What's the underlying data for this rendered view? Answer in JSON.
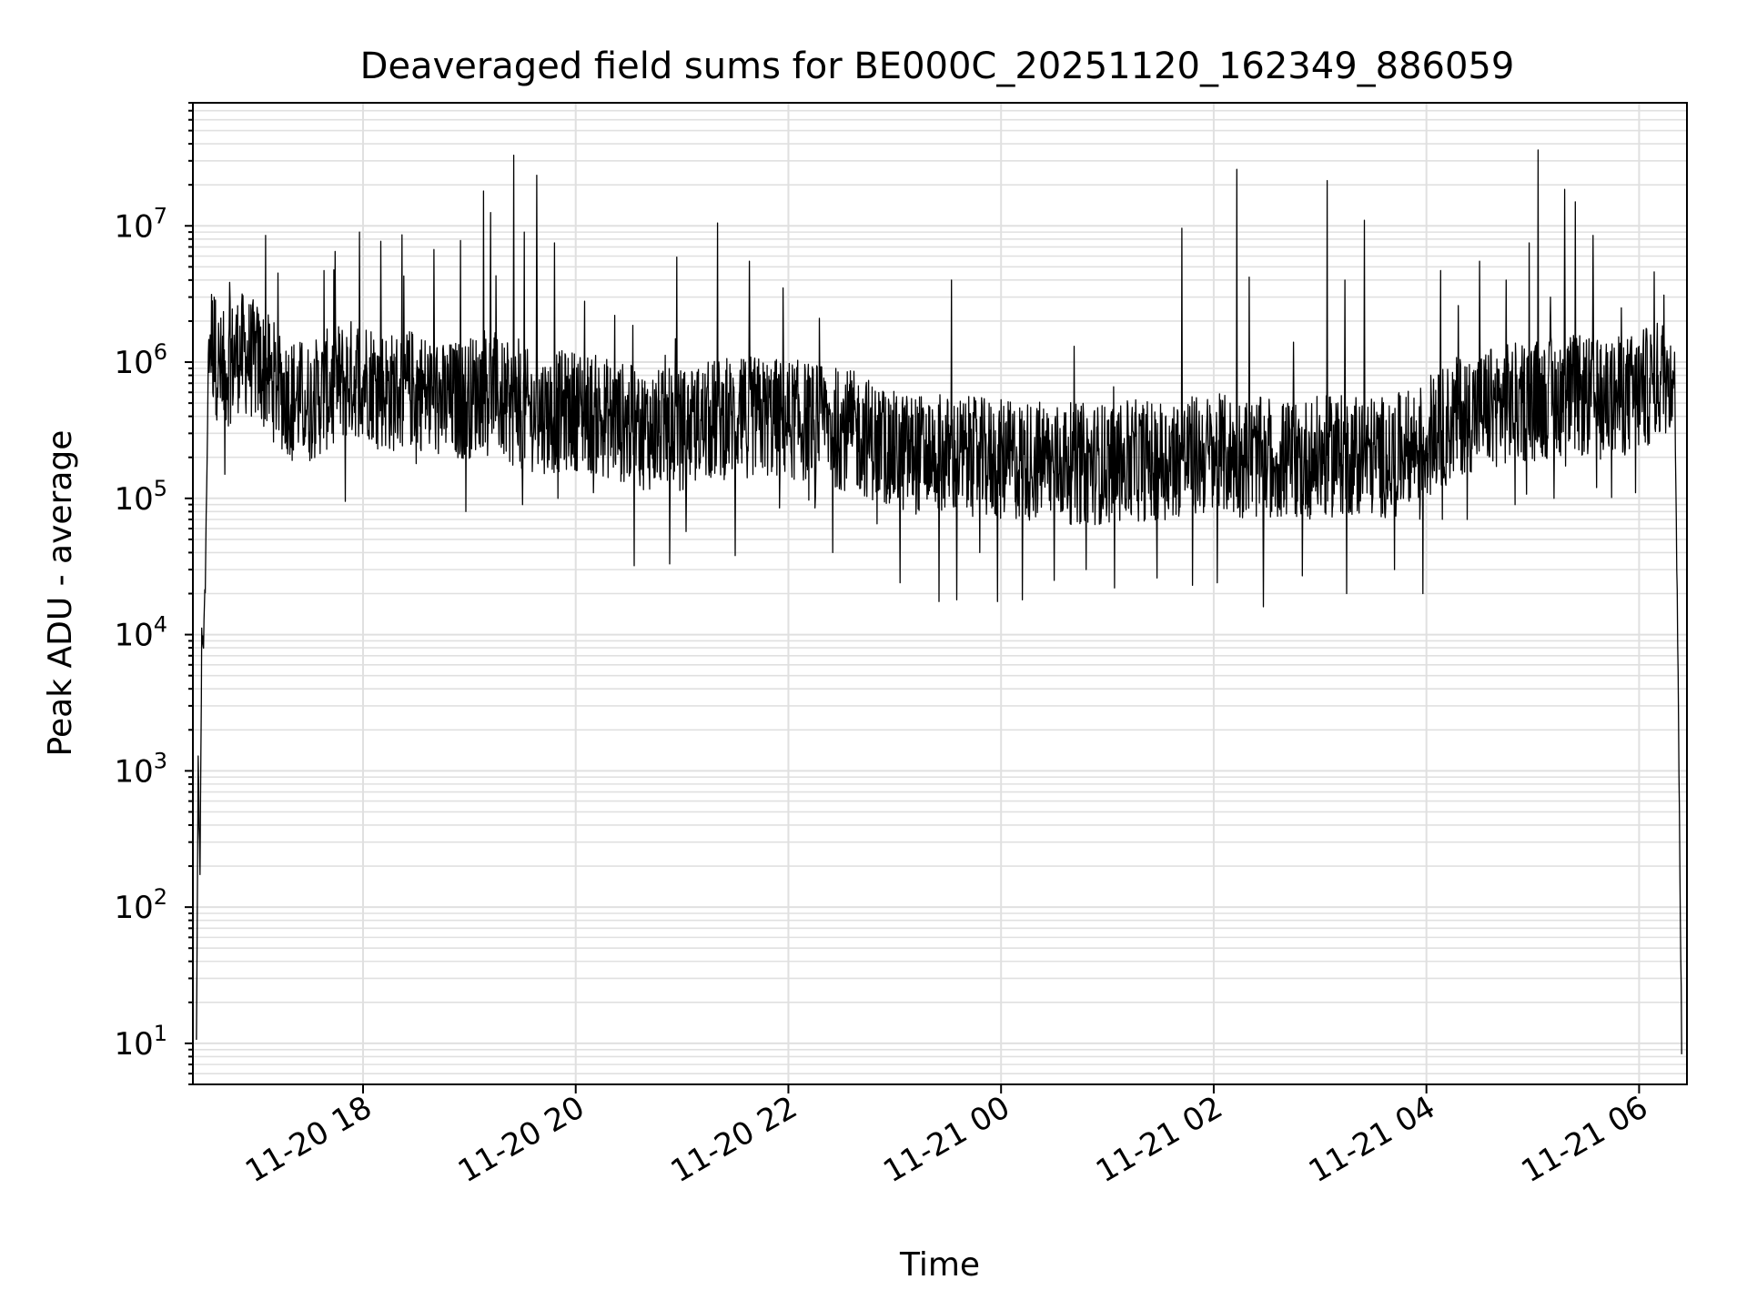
{
  "chart_data": {
    "type": "line",
    "title": "Deaveraged field sums for BE000C_20251120_162349_886059",
    "xlabel": "Time",
    "ylabel": "Peak ADU - average",
    "yscale": "log",
    "ylim": [
      5,
      80000000
    ],
    "xlim": [
      "11-20 16:24",
      "11-21 06:27"
    ],
    "grid": true,
    "line_color": "#000000",
    "grid_color": "#e0e0e0",
    "x_ticks": [
      {
        "label": "11-20 18",
        "time": "11-20 18:00"
      },
      {
        "label": "11-20 20",
        "time": "11-20 20:00"
      },
      {
        "label": "11-20 22",
        "time": "11-20 22:00"
      },
      {
        "label": "11-21 00",
        "time": "11-21 00:00"
      },
      {
        "label": "11-21 02",
        "time": "11-21 02:00"
      },
      {
        "label": "11-21 04",
        "time": "11-21 04:00"
      },
      {
        "label": "11-21 06",
        "time": "11-21 06:00"
      }
    ],
    "y_ticks": [
      {
        "base": "10",
        "exp": "1",
        "value": 10
      },
      {
        "base": "10",
        "exp": "2",
        "value": 100
      },
      {
        "base": "10",
        "exp": "3",
        "value": 1000
      },
      {
        "base": "10",
        "exp": "4",
        "value": 10000
      },
      {
        "base": "10",
        "exp": "5",
        "value": 100000
      },
      {
        "base": "10",
        "exp": "6",
        "value": 1000000
      },
      {
        "base": "10",
        "exp": "7",
        "value": 10000000
      }
    ],
    "series": [
      {
        "points": [
          [
            "11-20 16:26",
            10
          ],
          [
            "11-20 16:27",
            1200
          ],
          [
            "11-20 16:28",
            160
          ],
          [
            "11-20 16:29",
            10000
          ],
          [
            "11-20 16:30",
            9000
          ],
          [
            "11-20 16:31",
            24000
          ],
          [
            "11-20 16:33",
            1700000
          ],
          [
            "11-20 16:40",
            800000
          ],
          [
            "11-20 16:50",
            1200000
          ],
          [
            "11-20 17:00",
            1000000
          ],
          [
            "11-20 17:15",
            600000
          ],
          [
            "11-20 17:30",
            500000
          ],
          [
            "11-20 17:45",
            700000
          ],
          [
            "11-20 18:00",
            800000
          ],
          [
            "11-20 18:15",
            600000
          ],
          [
            "11-20 18:30",
            650000
          ],
          [
            "11-20 18:45",
            500000
          ],
          [
            "11-20 19:00",
            550000
          ],
          [
            "11-20 19:10",
            700000
          ],
          [
            "11-20 19:20",
            500000
          ],
          [
            "11-20 19:30",
            450000
          ],
          [
            "11-20 19:45",
            420000
          ],
          [
            "11-20 20:00",
            450000
          ],
          [
            "11-20 20:20",
            380000
          ],
          [
            "11-20 20:40",
            320000
          ],
          [
            "11-20 21:00",
            320000
          ],
          [
            "11-20 21:20",
            380000
          ],
          [
            "11-20 21:40",
            400000
          ],
          [
            "11-20 22:00",
            380000
          ],
          [
            "11-20 22:20",
            350000
          ],
          [
            "11-20 22:40",
            300000
          ],
          [
            "11-20 23:00",
            220000
          ],
          [
            "11-20 23:20",
            210000
          ],
          [
            "11-20 23:40",
            200000
          ],
          [
            "11-21 00:00",
            190000
          ],
          [
            "11-21 00:20",
            190000
          ],
          [
            "11-21 00:40",
            180000
          ],
          [
            "11-21 01:00",
            180000
          ],
          [
            "11-21 01:20",
            190000
          ],
          [
            "11-21 01:40",
            200000
          ],
          [
            "11-21 02:00",
            210000
          ],
          [
            "11-21 02:20",
            200000
          ],
          [
            "11-21 02:40",
            190000
          ],
          [
            "11-21 03:00",
            200000
          ],
          [
            "11-21 03:20",
            210000
          ],
          [
            "11-21 03:40",
            200000
          ],
          [
            "11-21 04:00",
            260000
          ],
          [
            "11-21 04:20",
            420000
          ],
          [
            "11-21 04:40",
            480000
          ],
          [
            "11-21 05:00",
            520000
          ],
          [
            "11-21 05:20",
            580000
          ],
          [
            "11-21 05:40",
            520000
          ],
          [
            "11-21 06:00",
            600000
          ],
          [
            "11-21 06:15",
            800000
          ],
          [
            "11-21 06:20",
            900000
          ],
          [
            "11-21 06:22",
            5000
          ],
          [
            "11-21 06:24",
            10
          ]
        ],
        "spikes": [
          [
            "11-20 16:36",
            3000000
          ],
          [
            "11-20 16:45",
            2800000
          ],
          [
            "11-20 17:05",
            8500000
          ],
          [
            "11-20 17:12",
            4500000
          ],
          [
            "11-20 17:20",
            8000000
          ],
          [
            "11-20 17:38",
            4700000
          ],
          [
            "11-20 17:58",
            9000000
          ],
          [
            "11-20 18:10",
            7700000
          ],
          [
            "11-20 18:22",
            8600000
          ],
          [
            "11-20 18:40",
            6700000
          ],
          [
            "11-20 18:55",
            7800000
          ],
          [
            "11-20 19:08",
            18000000
          ],
          [
            "11-20 19:12",
            12500000
          ],
          [
            "11-20 19:25",
            33000000
          ],
          [
            "11-20 19:31",
            9000000
          ],
          [
            "11-20 19:38",
            23500000
          ],
          [
            "11-20 19:48",
            7500000
          ],
          [
            "11-20 20:05",
            2800000
          ],
          [
            "11-20 20:22",
            2200000
          ],
          [
            "11-20 20:57",
            5900000
          ],
          [
            "11-20 21:20",
            10500000
          ],
          [
            "11-20 21:38",
            5500000
          ],
          [
            "11-20 21:57",
            3500000
          ],
          [
            "11-20 22:25",
            3200000
          ],
          [
            "11-20 23:32",
            4000000
          ],
          [
            "11-20 23:58",
            700000
          ],
          [
            "11-21 01:42",
            9600000
          ],
          [
            "11-21 02:13",
            26000000
          ],
          [
            "11-21 02:20",
            4200000
          ],
          [
            "11-21 02:45",
            1400000
          ],
          [
            "11-21 03:04",
            21500000
          ],
          [
            "11-21 03:14",
            4000000
          ],
          [
            "11-21 03:25",
            11000000
          ],
          [
            "11-21 04:08",
            4700000
          ],
          [
            "11-21 04:18",
            2600000
          ],
          [
            "11-21 04:30",
            5500000
          ],
          [
            "11-21 04:45",
            4000000
          ],
          [
            "11-21 04:58",
            7500000
          ],
          [
            "11-21 05:03",
            36000000
          ],
          [
            "11-21 05:10",
            3000000
          ],
          [
            "11-21 05:18",
            18500000
          ],
          [
            "11-21 05:24",
            15000000
          ],
          [
            "11-21 05:34",
            8500000
          ],
          [
            "11-21 05:50",
            2500000
          ],
          [
            "11-21 06:14",
            3100000
          ]
        ],
        "dips": [
          [
            "11-20 16:42",
            150000
          ],
          [
            "11-20 17:20",
            190000
          ],
          [
            "11-20 17:50",
            95000
          ],
          [
            "11-20 18:30",
            180000
          ],
          [
            "11-20 18:58",
            80000
          ],
          [
            "11-20 19:30",
            90000
          ],
          [
            "11-20 19:50",
            100000
          ],
          [
            "11-20 20:10",
            110000
          ],
          [
            "11-20 20:33",
            32000
          ],
          [
            "11-20 20:53",
            33000
          ],
          [
            "11-20 21:30",
            38000
          ],
          [
            "11-20 21:55",
            85000
          ],
          [
            "11-20 22:15",
            85000
          ],
          [
            "11-20 22:25",
            40000
          ],
          [
            "11-20 22:50",
            65000
          ],
          [
            "11-20 23:03",
            24000
          ],
          [
            "11-20 23:25",
            17500
          ],
          [
            "11-20 23:35",
            18000
          ],
          [
            "11-20 23:48",
            40000
          ],
          [
            "11-20 23:58",
            17500
          ],
          [
            "11-21 00:12",
            18000
          ],
          [
            "11-21 00:30",
            25000
          ],
          [
            "11-21 00:48",
            30000
          ],
          [
            "11-21 01:04",
            22000
          ],
          [
            "11-21 01:28",
            26000
          ],
          [
            "11-21 01:48",
            23000
          ],
          [
            "11-21 02:02",
            24000
          ],
          [
            "11-21 02:28",
            16000
          ],
          [
            "11-21 02:50",
            27000
          ],
          [
            "11-21 03:15",
            20000
          ],
          [
            "11-21 03:42",
            30000
          ],
          [
            "11-21 03:58",
            20000
          ],
          [
            "11-21 04:23",
            70000
          ],
          [
            "11-21 04:50",
            90000
          ],
          [
            "11-21 05:12",
            100000
          ],
          [
            "11-21 05:36",
            120000
          ],
          [
            "11-21 05:58",
            110000
          ]
        ]
      }
    ]
  }
}
